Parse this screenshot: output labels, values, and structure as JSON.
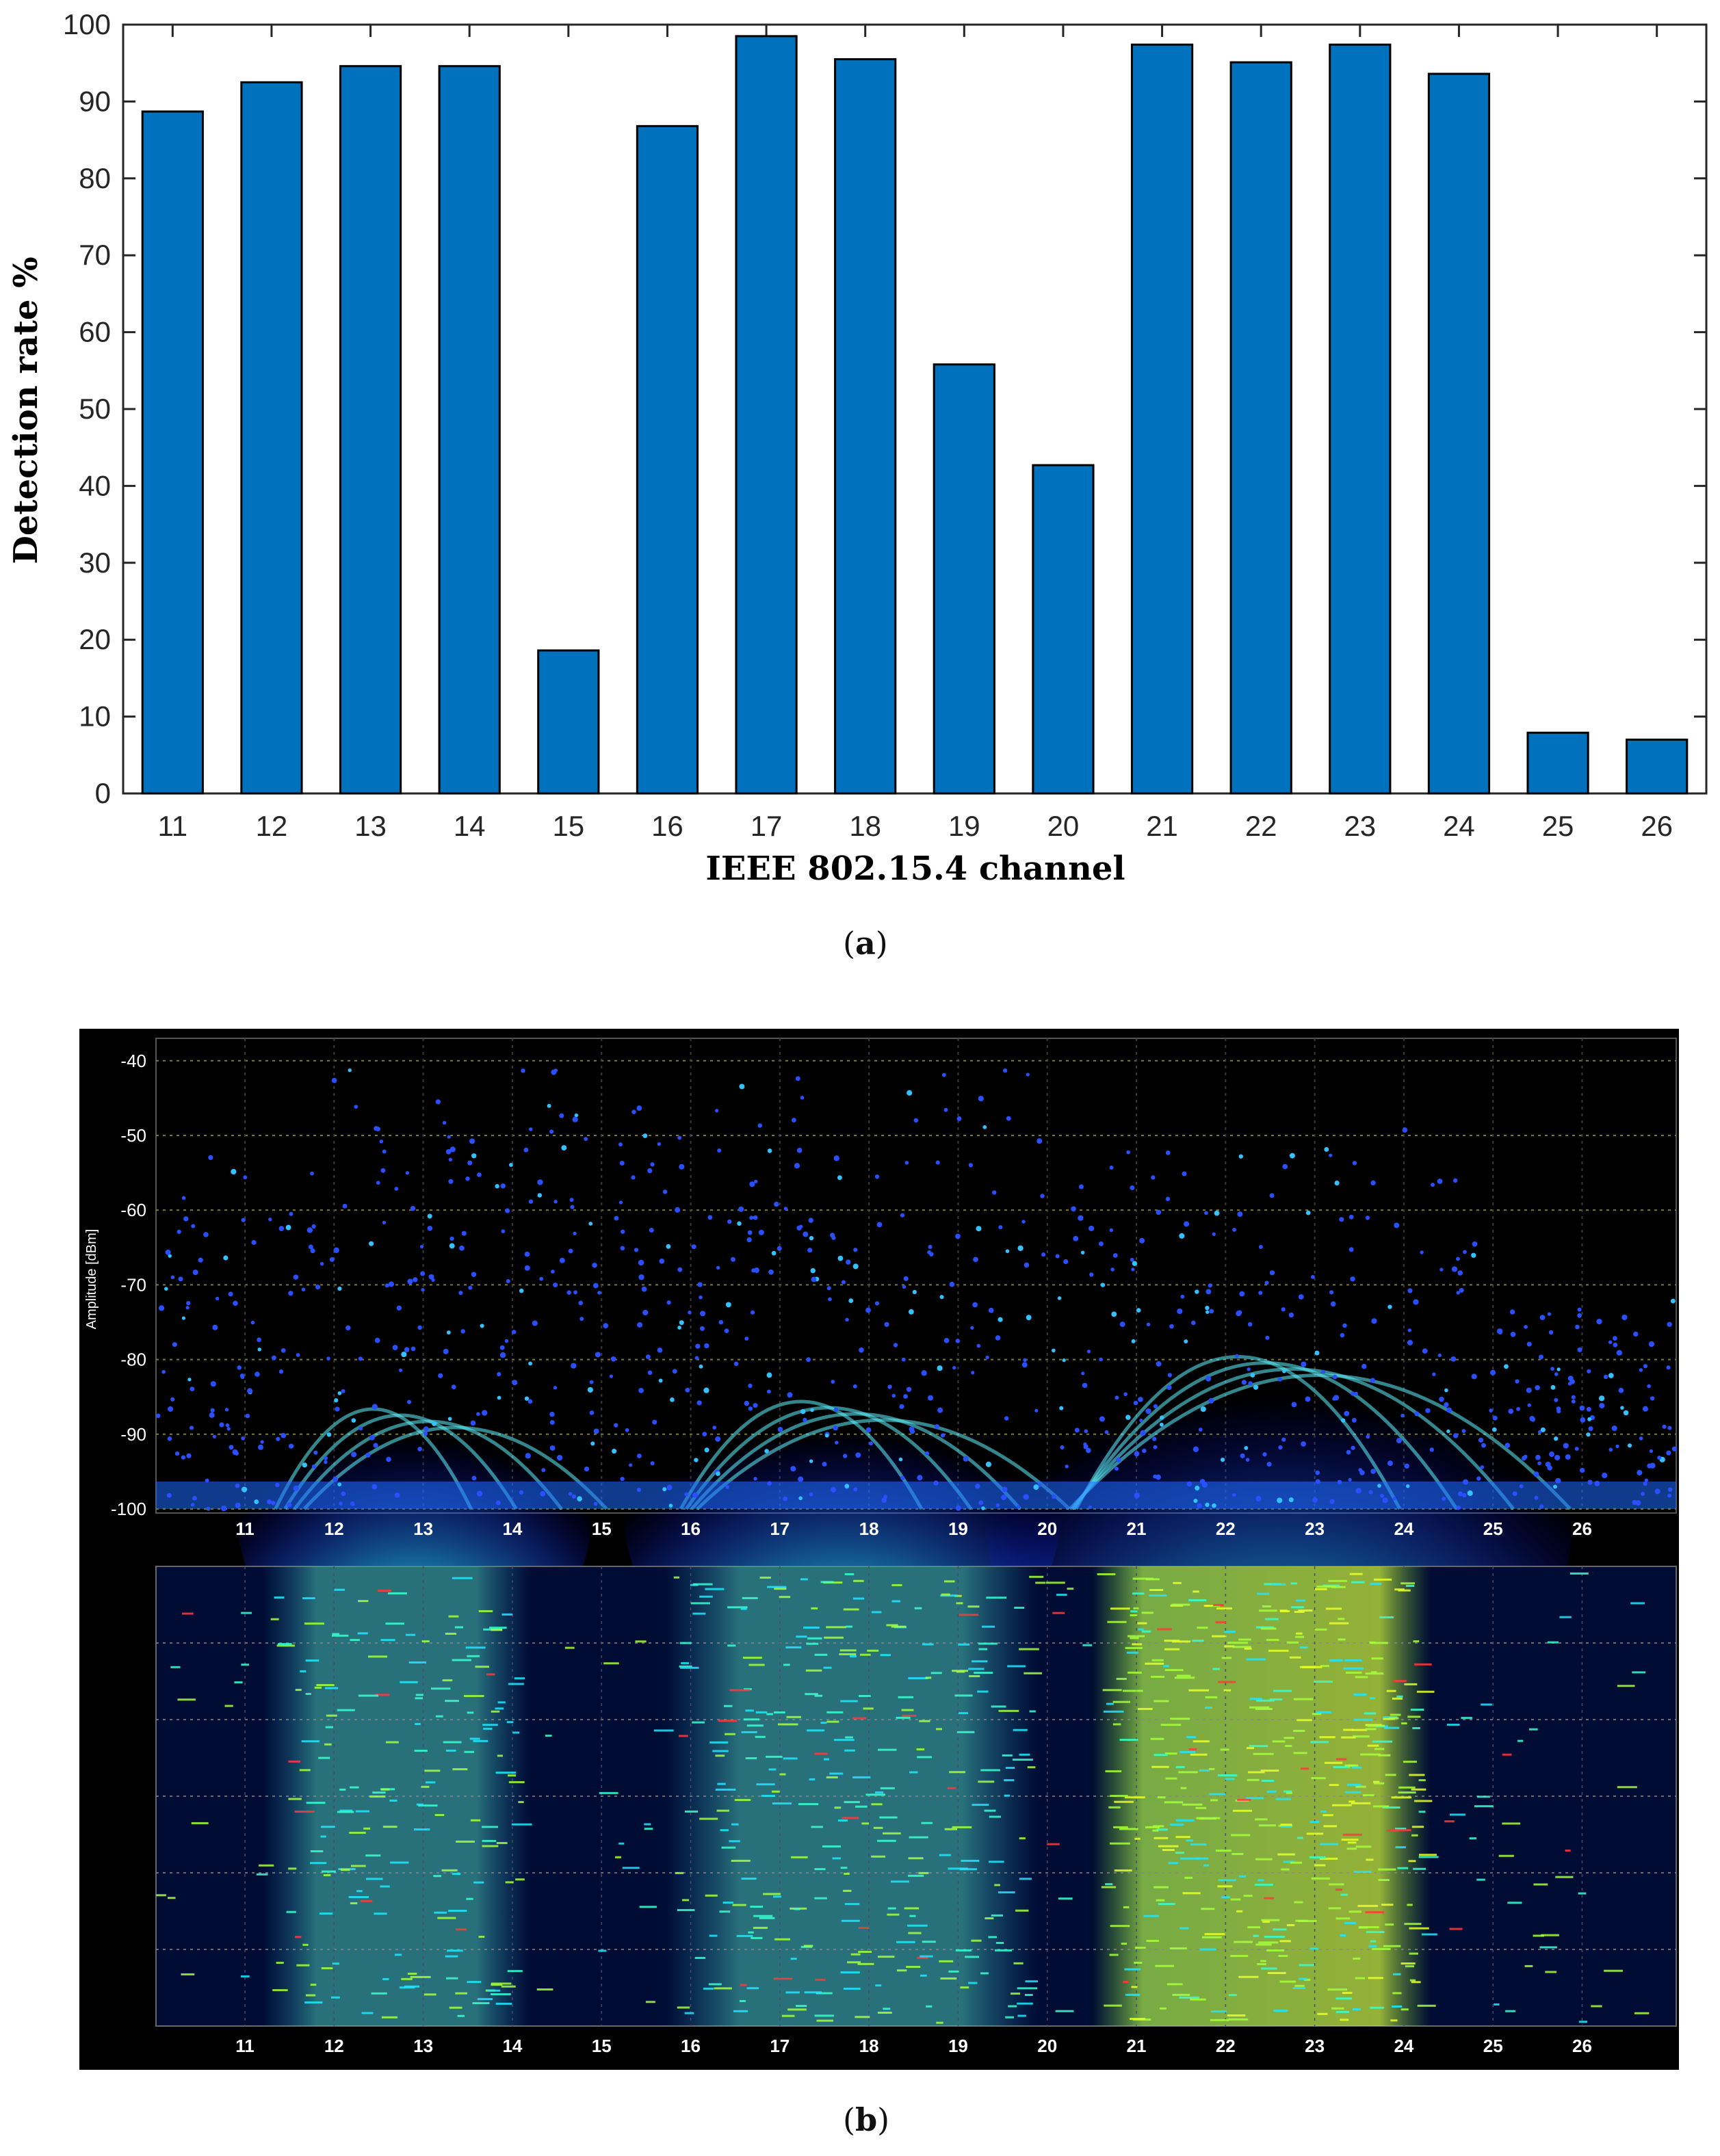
{
  "figure_a": {
    "caption_open": "(",
    "caption_letter": "a",
    "caption_close": ")",
    "chart_data": {
      "type": "bar",
      "categories": [
        "11",
        "12",
        "13",
        "14",
        "15",
        "16",
        "17",
        "18",
        "19",
        "20",
        "21",
        "22",
        "23",
        "24",
        "25",
        "26"
      ],
      "values": [
        88.7,
        92.5,
        94.6,
        94.6,
        18.6,
        86.8,
        98.5,
        95.5,
        55.8,
        42.7,
        97.4,
        95.1,
        97.4,
        93.6,
        7.9,
        7.0
      ],
      "xlabel": "IEEE 802.15.4 channel",
      "ylabel": "Detection rate %",
      "yticks": [
        "0",
        "10",
        "20",
        "30",
        "40",
        "50",
        "60",
        "70",
        "80",
        "90",
        "100"
      ],
      "ylim": [
        0,
        100
      ],
      "bar_color": "#0072bd",
      "grid": false
    }
  },
  "figure_b": {
    "caption_open": "(",
    "caption_letter": "b",
    "caption_close": ")",
    "spectrum": {
      "ylabel": "Amplitude [dBm]",
      "yticks": [
        "-40",
        "-50",
        "-60",
        "-70",
        "-80",
        "-90",
        "-100"
      ],
      "ylim": [
        -100,
        -37
      ],
      "xticks": [
        "11",
        "12",
        "13",
        "14",
        "15",
        "16",
        "17",
        "18",
        "19",
        "20",
        "21",
        "22",
        "23",
        "24",
        "25",
        "26"
      ],
      "background": "#000000"
    },
    "waterfall": {
      "xticks": [
        "11",
        "12",
        "13",
        "14",
        "15",
        "16",
        "17",
        "18",
        "19",
        "20",
        "21",
        "22",
        "23",
        "24",
        "25",
        "26"
      ],
      "background": "#000c33"
    }
  }
}
